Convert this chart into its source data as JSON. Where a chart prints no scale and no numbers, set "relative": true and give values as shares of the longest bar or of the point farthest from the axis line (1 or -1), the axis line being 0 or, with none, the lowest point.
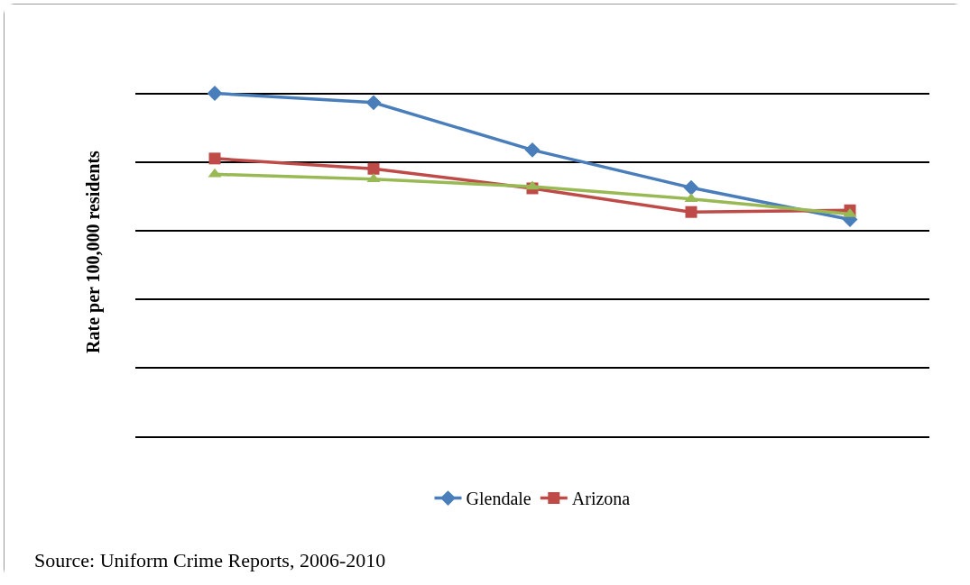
{
  "chart_data": {
    "type": "line",
    "ylabel": "Rate per 100,000 residents",
    "relative": true,
    "grid": "y",
    "legend": "bottom",
    "categories": [
      null,
      null,
      null,
      null,
      null
    ],
    "series": [
      {
        "name": "Glendale",
        "color": "#4a7ebb",
        "marker": "diamond",
        "values": [
          1,
          0.973,
          0.835,
          0.725,
          0.632
        ]
      },
      {
        "name": "Arizona",
        "color": "#be4b48",
        "marker": "square",
        "values": [
          0.81,
          0.78,
          0.723,
          0.654,
          0.659
        ]
      },
      {
        "color": "#98b954",
        "marker": "triangle",
        "values": [
          0.764,
          0.75,
          0.728,
          0.692,
          0.648
        ]
      }
    ],
    "annotations": [
      "Source: Uniform Crime Reports, 2006-2010"
    ]
  }
}
